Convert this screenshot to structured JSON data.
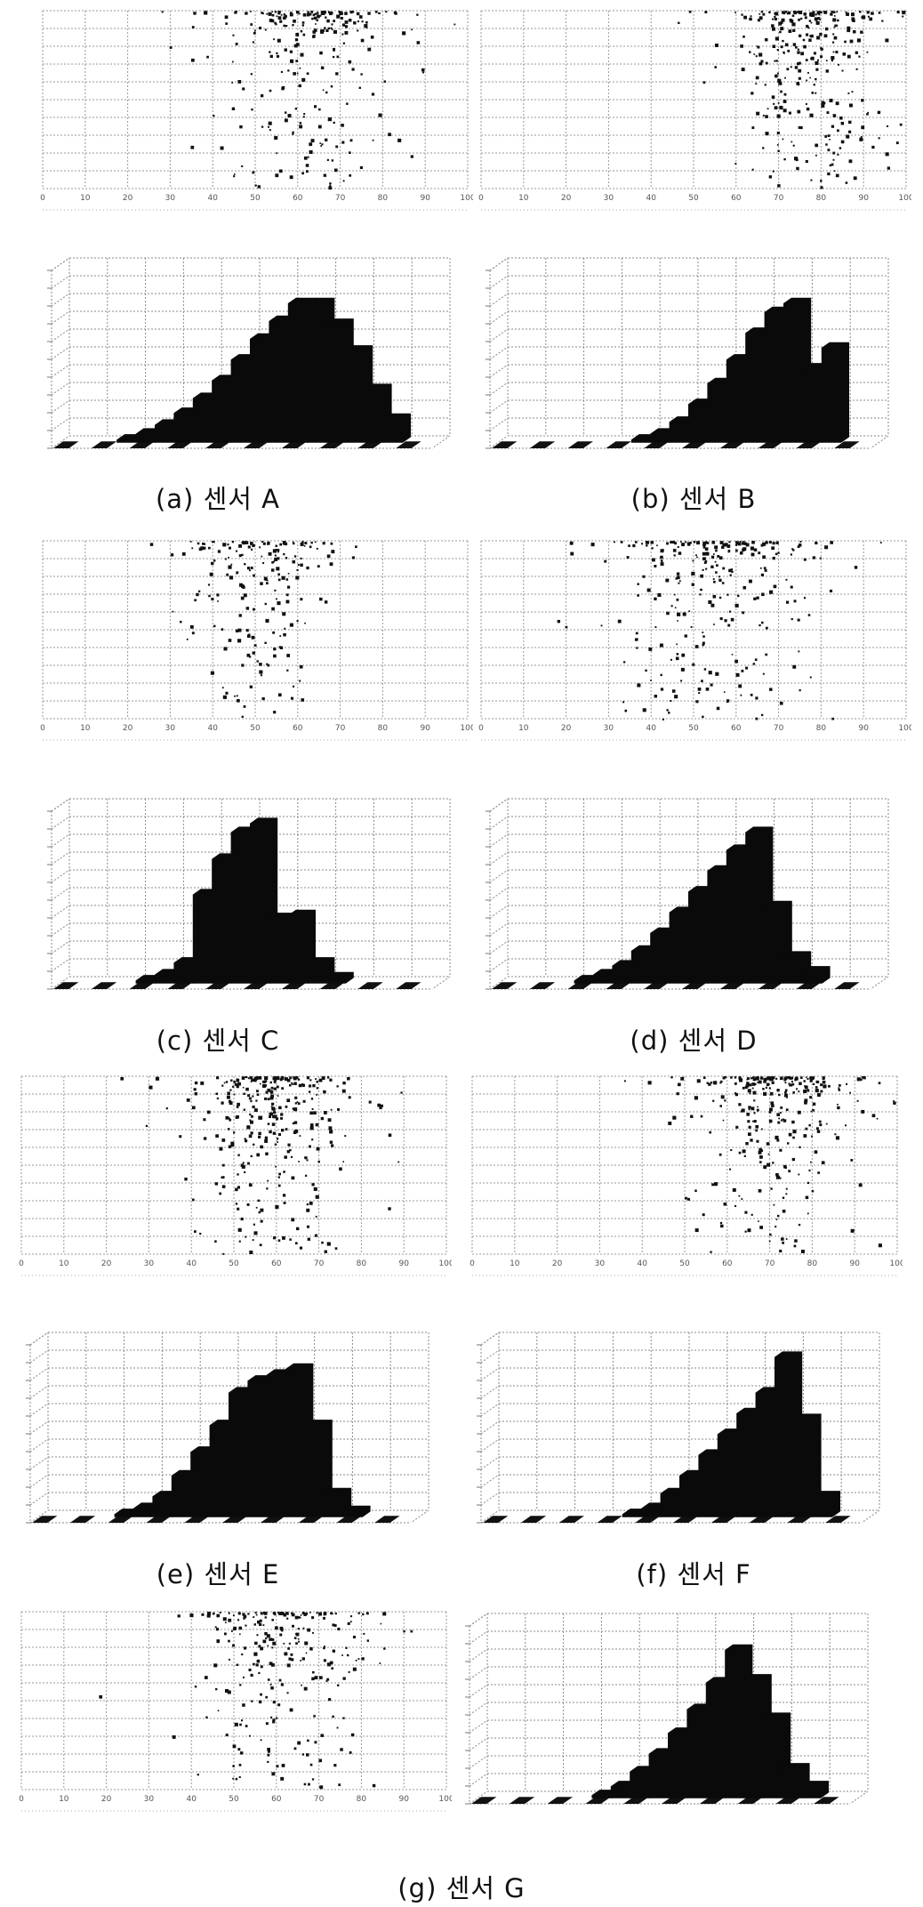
{
  "figure": {
    "captions": {
      "a": "(a) 센서 A",
      "b": "(b) 센서 B",
      "c": "(c) 센서 C",
      "d": "(d) 센서 D",
      "e": "(e) 센서 E",
      "f": "(f) 센서 F",
      "g": "(g) 센서 G"
    }
  },
  "chart_data": [
    {
      "id": "a",
      "type": "scatter",
      "ylim": [
        0,
        1
      ],
      "xlim": [
        0,
        100
      ],
      "grid": true,
      "x_ticks": [
        "0",
        "10",
        "20",
        "30",
        "40",
        "50",
        "60",
        "70",
        "80",
        "90",
        "100"
      ],
      "clusters": [
        {
          "x_mean": 62,
          "x_sd": 11,
          "count": 260,
          "dense_top": true
        }
      ]
    },
    {
      "id": "a-hist",
      "type": "bar",
      "grid": true,
      "values": [
        0,
        0,
        0,
        1,
        3,
        6,
        10,
        15,
        21,
        28,
        35,
        41,
        47,
        47,
        40,
        31,
        18,
        8,
        0,
        0
      ]
    },
    {
      "id": "b",
      "type": "scatter",
      "ylim": [
        0,
        1
      ],
      "xlim": [
        0,
        100
      ],
      "grid": true,
      "x_ticks": [
        "0",
        "10",
        "20",
        "30",
        "40",
        "50",
        "60",
        "70",
        "80",
        "90",
        "100"
      ],
      "clusters": [
        {
          "x_mean": 78,
          "x_sd": 9,
          "count": 300,
          "dense_top": true
        }
      ]
    },
    {
      "id": "b-hist",
      "type": "bar",
      "grid": true,
      "values": [
        0,
        0,
        0,
        0,
        0,
        0,
        0,
        1,
        3,
        7,
        13,
        20,
        28,
        37,
        44,
        47,
        25,
        32,
        0,
        0
      ]
    },
    {
      "id": "c",
      "type": "scatter",
      "ylim": [
        0,
        1
      ],
      "xlim": [
        0,
        100
      ],
      "grid": true,
      "x_ticks": [
        "0",
        "10",
        "20",
        "30",
        "40",
        "50",
        "60",
        "70",
        "80",
        "90",
        "100"
      ],
      "clusters": [
        {
          "x_mean": 50,
          "x_sd": 9,
          "count": 200,
          "dense_top": true
        }
      ]
    },
    {
      "id": "c-hist",
      "type": "bar",
      "grid": true,
      "values": [
        0,
        0,
        0,
        0,
        1,
        3,
        7,
        30,
        42,
        51,
        54,
        22,
        23,
        7,
        2,
        0,
        0,
        0,
        0,
        0
      ]
    },
    {
      "id": "d",
      "type": "scatter",
      "ylim": [
        0,
        1
      ],
      "xlim": [
        0,
        100
      ],
      "grid": true,
      "x_ticks": [
        "0",
        "10",
        "20",
        "30",
        "40",
        "50",
        "60",
        "70",
        "80",
        "90",
        "100"
      ],
      "clusters": [
        {
          "x_mean": 55,
          "x_sd": 12,
          "count": 280,
          "dense_top": true
        }
      ]
    },
    {
      "id": "d-hist",
      "type": "bar",
      "grid": true,
      "values": [
        0,
        0,
        0,
        0,
        1,
        3,
        6,
        11,
        17,
        24,
        31,
        38,
        45,
        51,
        26,
        9,
        4,
        0,
        0,
        0
      ]
    },
    {
      "id": "e",
      "type": "scatter",
      "ylim": [
        0,
        1
      ],
      "xlim": [
        0,
        100
      ],
      "grid": true,
      "x_ticks": [
        "0",
        "10",
        "20",
        "30",
        "40",
        "50",
        "60",
        "70",
        "80",
        "90",
        "100"
      ],
      "clusters": [
        {
          "x_mean": 58,
          "x_sd": 10,
          "count": 320,
          "dense_top": true
        }
      ]
    },
    {
      "id": "e-hist",
      "type": "bar",
      "grid": true,
      "values": [
        0,
        0,
        0,
        0,
        1,
        3,
        7,
        14,
        22,
        31,
        42,
        46,
        48,
        50,
        31,
        8,
        2,
        0,
        0,
        0
      ]
    },
    {
      "id": "f",
      "type": "scatter",
      "ylim": [
        0,
        1
      ],
      "xlim": [
        0,
        100
      ],
      "grid": true,
      "x_ticks": [
        "0",
        "10",
        "20",
        "30",
        "40",
        "50",
        "60",
        "70",
        "80",
        "90",
        "100"
      ],
      "clusters": [
        {
          "x_mean": 72,
          "x_sd": 10,
          "count": 290,
          "dense_top": true
        }
      ]
    },
    {
      "id": "f-hist",
      "type": "bar",
      "grid": true,
      "values": [
        0,
        0,
        0,
        0,
        0,
        0,
        0,
        1,
        3,
        8,
        14,
        21,
        28,
        35,
        42,
        54,
        33,
        7,
        0,
        0
      ]
    },
    {
      "id": "g",
      "type": "scatter",
      "ylim": [
        0,
        1
      ],
      "xlim": [
        0,
        100
      ],
      "grid": true,
      "x_ticks": [
        "0",
        "10",
        "20",
        "30",
        "40",
        "50",
        "60",
        "70",
        "80",
        "90",
        "100"
      ],
      "clusters": [
        {
          "x_mean": 60,
          "x_sd": 11,
          "count": 260,
          "dense_top": true
        }
      ]
    },
    {
      "id": "g-hist",
      "type": "bar",
      "grid": true,
      "values": [
        0,
        0,
        0,
        0,
        0,
        0,
        1,
        4,
        9,
        15,
        22,
        30,
        39,
        50,
        40,
        27,
        10,
        4,
        0,
        0
      ]
    }
  ]
}
